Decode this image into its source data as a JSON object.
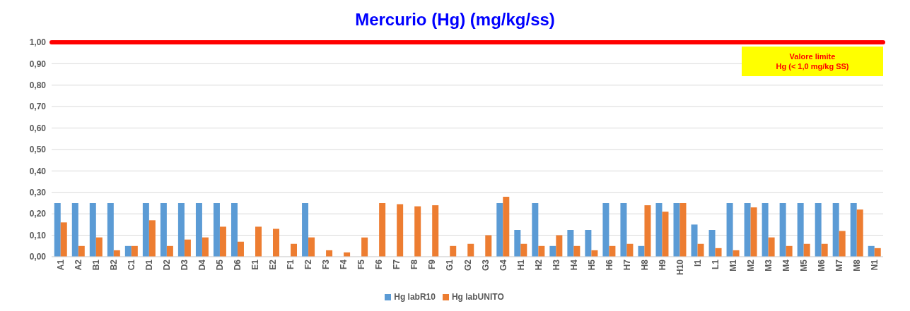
{
  "chart_data": {
    "type": "bar",
    "title": "Mercurio (Hg)  (mg/kg/ss)",
    "categories": [
      "A1",
      "A2",
      "B1",
      "B2",
      "C1",
      "D1",
      "D2",
      "D3",
      "D4",
      "D5",
      "D6",
      "E1",
      "E2",
      "F1",
      "F2",
      "F3",
      "F4",
      "F5",
      "F6",
      "F7",
      "F8",
      "F9",
      "G1",
      "G2",
      "G3",
      "G4",
      "H1",
      "H2",
      "H3",
      "H4",
      "H5",
      "H6",
      "H7",
      "H8",
      "H9",
      "H10",
      "I1",
      "L1",
      "M1",
      "M2",
      "M3",
      "M4",
      "M5",
      "M6",
      "M7",
      "M8",
      "N1"
    ],
    "series": [
      {
        "name": "Hg  labR10",
        "color": "#5b9bd5",
        "values": [
          0.25,
          0.25,
          0.25,
          0.25,
          0.05,
          0.25,
          0.25,
          0.25,
          0.25,
          0.25,
          0.25,
          0,
          0,
          0,
          0.25,
          0,
          0,
          0,
          0,
          0,
          0,
          0,
          0,
          0,
          0,
          0.25,
          0.125,
          0.25,
          0.05,
          0.125,
          0.125,
          0.25,
          0.25,
          0.05,
          0.25,
          0.25,
          0.15,
          0.125,
          0.25,
          0.25,
          0.25,
          0.25,
          0.25,
          0.25,
          0.25,
          0.25,
          0.05
        ]
      },
      {
        "name": "Hg labUNITO",
        "color": "#ed7d31",
        "values": [
          0.16,
          0.05,
          0.09,
          0.03,
          0.05,
          0.17,
          0.05,
          0.08,
          0.09,
          0.14,
          0.07,
          0.14,
          0.13,
          0.06,
          0.09,
          0.03,
          0.02,
          0.09,
          0.25,
          0.245,
          0.235,
          0.24,
          0.05,
          0.06,
          0.1,
          0.28,
          0.06,
          0.05,
          0.1,
          0.05,
          0.03,
          0.05,
          0.06,
          0.24,
          0.21,
          0.25,
          0.06,
          0.04,
          0.03,
          0.23,
          0.09,
          0.05,
          0.06,
          0.06,
          0.12,
          0.22,
          0.04
        ]
      }
    ],
    "ylim": [
      0,
      1
    ],
    "yticks": [
      {
        "value": 0,
        "label": "0,00"
      },
      {
        "value": 0.1,
        "label": "0,10"
      },
      {
        "value": 0.2,
        "label": "0,20"
      },
      {
        "value": 0.3,
        "label": "0,30"
      },
      {
        "value": 0.4,
        "label": "0,40"
      },
      {
        "value": 0.5,
        "label": "0,50"
      },
      {
        "value": 0.6,
        "label": "0,60"
      },
      {
        "value": 0.7,
        "label": "0,70"
      },
      {
        "value": 0.8,
        "label": "0,80"
      },
      {
        "value": 0.9,
        "label": "0,90"
      },
      {
        "value": 1,
        "label": "1,00"
      }
    ],
    "ref_lines": [
      {
        "axis": "y",
        "value": 1,
        "label": "Valore limite\nHg (< 1,0  mg/kg SS)",
        "color": "#ff0000"
      }
    ],
    "grid": "y",
    "legend": "bottom"
  }
}
